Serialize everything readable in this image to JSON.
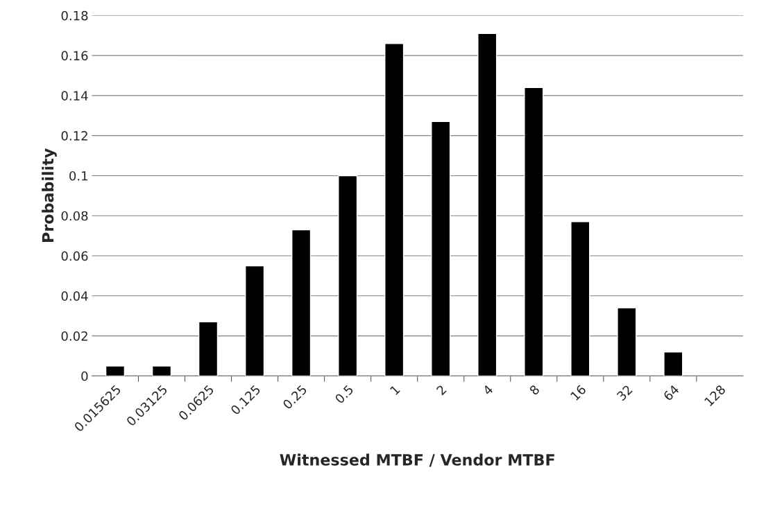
{
  "chart_data": {
    "type": "bar",
    "xlabel": "Witnessed MTBF / Vendor MTBF",
    "ylabel": "Probability",
    "categories": [
      "0.015625",
      "0.03125",
      "0.0625",
      "0.125",
      "0.25",
      "0.5",
      "1",
      "2",
      "4",
      "8",
      "16",
      "32",
      "64",
      "128"
    ],
    "values": [
      0.005,
      0.005,
      0.027,
      0.055,
      0.073,
      0.1,
      0.166,
      0.127,
      0.171,
      0.144,
      0.077,
      0.034,
      0.012,
      null
    ],
    "color": "#000000",
    "ylim": [
      0,
      0.18
    ],
    "yticks": [
      0,
      0.02,
      0.04,
      0.06,
      0.08,
      0.1,
      0.12,
      0.14,
      0.16,
      0.18
    ],
    "grid": "y",
    "legend": false
  }
}
